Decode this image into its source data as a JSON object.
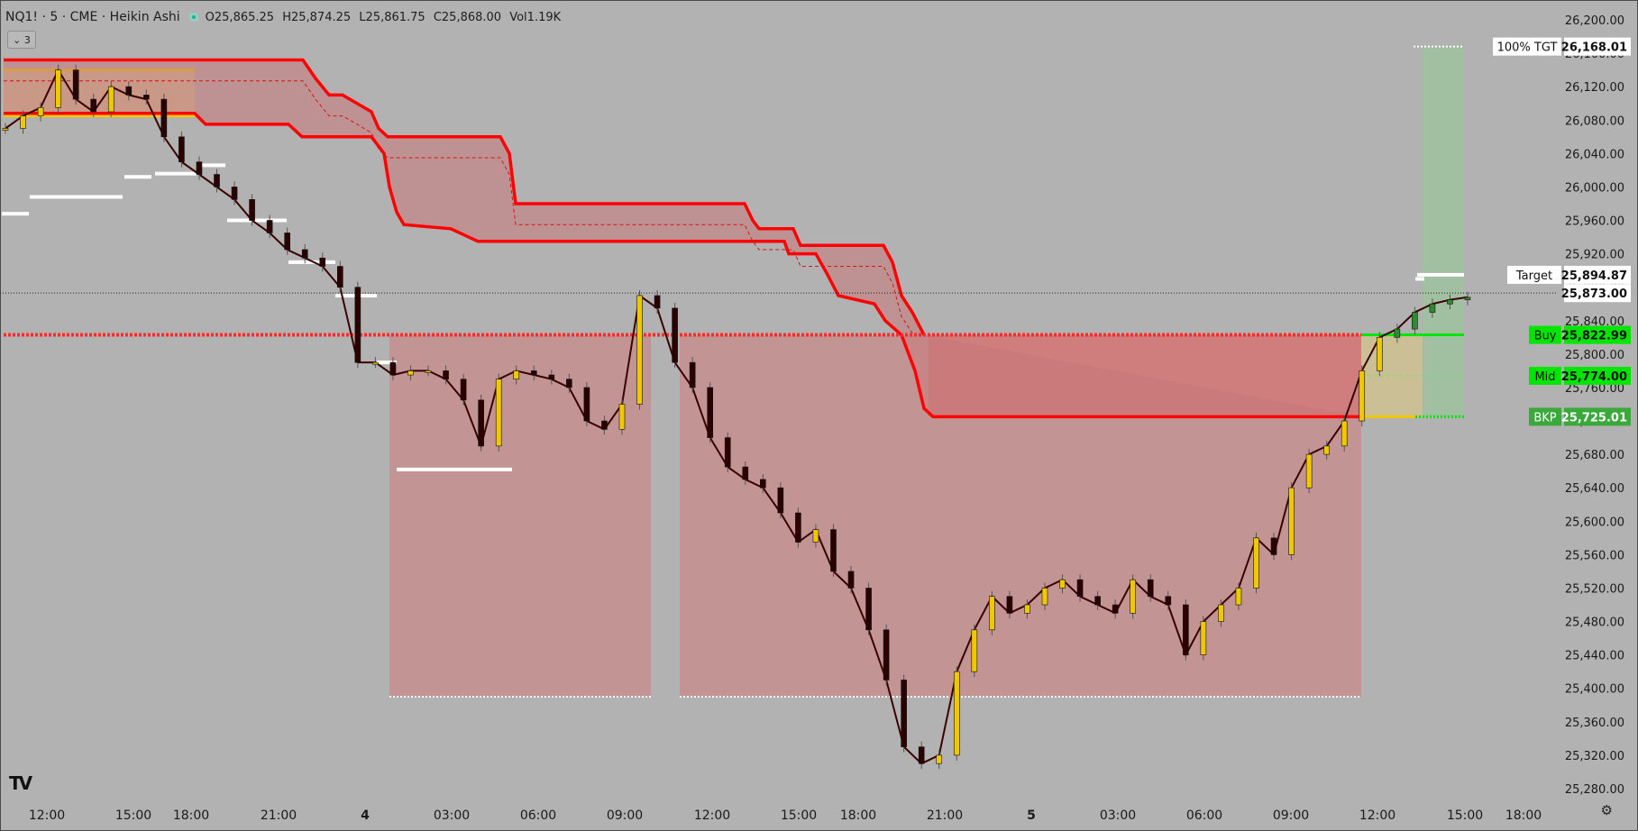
{
  "header": {
    "symbol": "NQ1! · 5 · CME · Heikin Ashi",
    "open": "O25,865.25",
    "high": "H25,874.25",
    "low": "L25,861.75",
    "close": "C25,868.00",
    "volume": "Vol1.19K",
    "status_color": "#22ab94"
  },
  "collapse_label": "⌄ 3",
  "logo_text": "TV",
  "settings_icon": "gear-icon",
  "chart_data": {
    "type": "line",
    "chart_style": "heikin-ashi candles",
    "x_labels": [
      "12:00",
      "15:00",
      "18:00",
      "21:00",
      "4",
      "03:00",
      "06:00",
      "09:00",
      "12:00",
      "15:00",
      "18:00",
      "21:00",
      "5",
      "03:00",
      "06:00",
      "09:00",
      "12:00",
      "15:00",
      "18:00"
    ],
    "y_ticks": [
      26200,
      26160,
      26120,
      26080,
      26040,
      26000,
      25960,
      25920,
      25880,
      25840,
      25800,
      25760,
      25720,
      25680,
      25640,
      25600,
      25560,
      25520,
      25480,
      25440,
      25400,
      25360,
      25320,
      25280
    ],
    "ylim": [
      25260,
      26210
    ],
    "price_points": [
      [
        0,
        26070
      ],
      [
        1,
        26085
      ],
      [
        2,
        26095
      ],
      [
        3,
        26140
      ],
      [
        4,
        26105
      ],
      [
        5,
        26090
      ],
      [
        6,
        26120
      ],
      [
        7,
        26110
      ],
      [
        8,
        26105
      ],
      [
        9,
        26060
      ],
      [
        10,
        26030
      ],
      [
        11,
        26015
      ],
      [
        12,
        26000
      ],
      [
        13,
        25985
      ],
      [
        14,
        25960
      ],
      [
        15,
        25945
      ],
      [
        16,
        25925
      ],
      [
        17,
        25915
      ],
      [
        18,
        25905
      ],
      [
        19,
        25880
      ],
      [
        20,
        25790
      ],
      [
        21,
        25790
      ],
      [
        22,
        25775
      ],
      [
        23,
        25780
      ],
      [
        24,
        25780
      ],
      [
        25,
        25770
      ],
      [
        26,
        25745
      ],
      [
        27,
        25690
      ],
      [
        28,
        25770
      ],
      [
        29,
        25780
      ],
      [
        30,
        25775
      ],
      [
        31,
        25770
      ],
      [
        32,
        25760
      ],
      [
        33,
        25720
      ],
      [
        34,
        25710
      ],
      [
        35,
        25740
      ],
      [
        36,
        25870
      ],
      [
        37,
        25855
      ],
      [
        38,
        25790
      ],
      [
        39,
        25760
      ],
      [
        40,
        25700
      ],
      [
        41,
        25665
      ],
      [
        42,
        25650
      ],
      [
        43,
        25640
      ],
      [
        44,
        25610
      ],
      [
        45,
        25575
      ],
      [
        46,
        25590
      ],
      [
        47,
        25540
      ],
      [
        48,
        25520
      ],
      [
        49,
        25470
      ],
      [
        50,
        25410
      ],
      [
        51,
        25330
      ],
      [
        52,
        25310
      ],
      [
        53,
        25320
      ],
      [
        54,
        25420
      ],
      [
        55,
        25470
      ],
      [
        56,
        25510
      ],
      [
        57,
        25490
      ],
      [
        58,
        25500
      ],
      [
        59,
        25520
      ],
      [
        60,
        25530
      ],
      [
        61,
        25510
      ],
      [
        62,
        25500
      ],
      [
        63,
        25490
      ],
      [
        64,
        25530
      ],
      [
        65,
        25510
      ],
      [
        66,
        25500
      ],
      [
        67,
        25440
      ],
      [
        68,
        25480
      ],
      [
        69,
        25500
      ],
      [
        70,
        25520
      ],
      [
        71,
        25580
      ],
      [
        72,
        25560
      ],
      [
        73,
        25640
      ],
      [
        74,
        25680
      ],
      [
        75,
        25690
      ],
      [
        76,
        25720
      ],
      [
        77,
        25780
      ],
      [
        78,
        25820
      ],
      [
        79,
        25830
      ],
      [
        80,
        25850
      ],
      [
        81,
        25860
      ],
      [
        82,
        25865
      ],
      [
        83,
        25868
      ]
    ],
    "levels": [
      {
        "name": "100% TGT",
        "value": "26,168.01",
        "price": 26168.01,
        "label_bg": "#ffffff",
        "value_bg": "#ffffff",
        "text_color": "#111111"
      },
      {
        "name": "Target",
        "value": "25,894.87",
        "price": 25894.87,
        "label_bg": "#ffffff",
        "value_bg": "#ffffff",
        "text_color": "#111111"
      },
      {
        "name": "",
        "value": "25,873.00",
        "price": 25873.0,
        "label_bg": "",
        "value_bg": "#ffffff",
        "text_color": "#111111"
      },
      {
        "name": "Buy",
        "value": "25,822.99",
        "price": 25822.99,
        "label_bg": "#00e600",
        "value_bg": "#00e600",
        "text_color": "#111111"
      },
      {
        "name": "Mid",
        "value": "25,774.00",
        "price": 25774.0,
        "label_bg": "#00e600",
        "value_bg": "#00e600",
        "text_color": "#111111"
      },
      {
        "name": "BKP",
        "value": "25,725.01",
        "price": 25725.01,
        "label_bg": "#3aa83a",
        "value_bg": "#3aa83a",
        "text_color": "#ffffff"
      }
    ],
    "colors": {
      "background": "#b2b2b2",
      "candle_up": "#f0c800",
      "candle_down": "#2a0000",
      "band": "#ff0000",
      "zone_fill": "#c88a8a",
      "session_box": "#d6c489",
      "target_box": "#9cc29c",
      "buy_line": "#00e600",
      "white_marks": "#ffffff"
    },
    "grid": false
  }
}
